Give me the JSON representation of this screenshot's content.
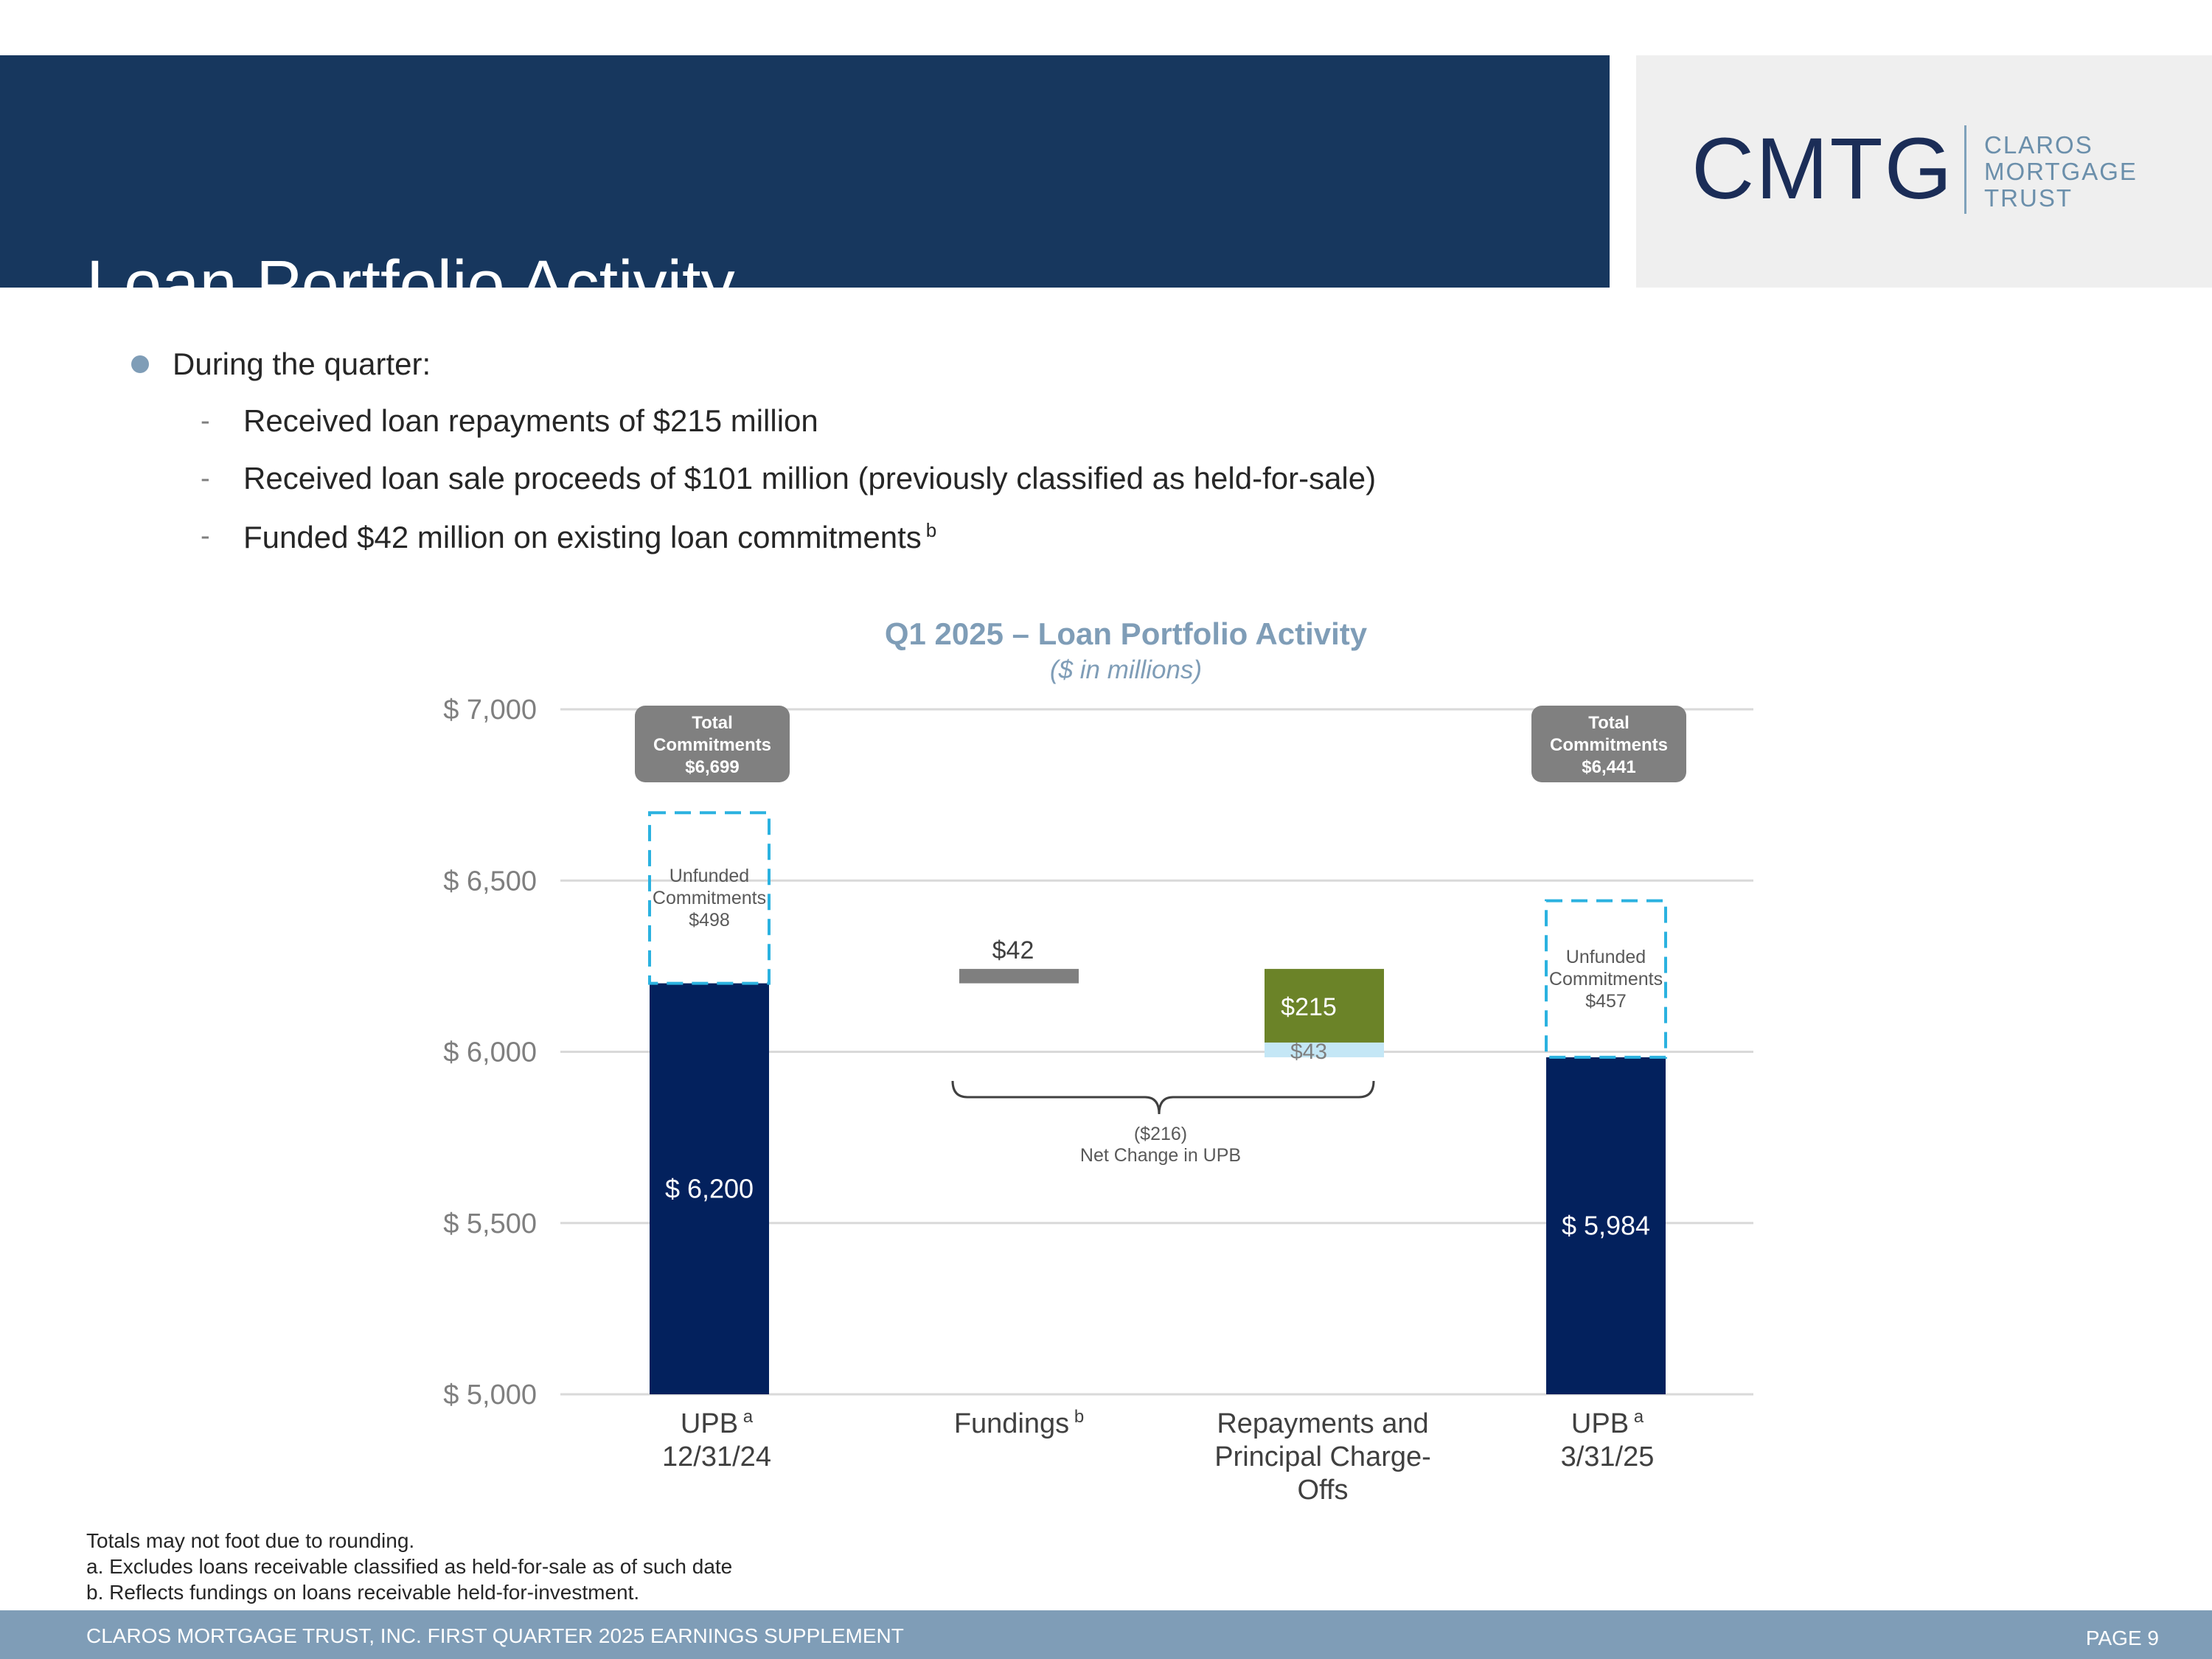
{
  "header": {
    "title": "Loan Portfolio Activity",
    "logo_mark": "CMTG",
    "logo_words": [
      "CLAROS",
      "MORTGAGE",
      "TRUST"
    ]
  },
  "bullets": {
    "lead": "During the quarter:",
    "items": [
      {
        "text": "Received loan repayments of $215 million",
        "note": ""
      },
      {
        "text": "Received loan sale proceeds of $101 million (previously classified as held-for-sale)",
        "note": ""
      },
      {
        "text": "Funded $42 million on existing loan commitments",
        "note": "b"
      }
    ]
  },
  "chart_data": {
    "type": "bar",
    "title": "Q1 2025 – Loan Portfolio Activity",
    "subtitle": "($ in millions)",
    "ylim": [
      5000,
      7000
    ],
    "yticks": [
      5000,
      5500,
      6000,
      6500,
      7000
    ],
    "ytick_labels": [
      "$ 5,000",
      "$ 5,500",
      "$ 6,000",
      "$ 6,500",
      "$ 7,000"
    ],
    "grid": true,
    "categories": [
      {
        "label": "UPB",
        "sup": "a",
        "label2": "12/31/24"
      },
      {
        "label": "Fundings",
        "sup": "b"
      },
      {
        "label": "Repayments and",
        "label2": "Principal Charge-",
        "label3": "Offs"
      },
      {
        "label": "UPB",
        "sup": "a",
        "label2": "3/31/25"
      }
    ],
    "upb": [
      {
        "category": "UPB 12/31/24",
        "value": 6200,
        "label": "$ 6,200"
      },
      {
        "category": "UPB 3/31/25",
        "value": 5984,
        "label": "$ 5,984"
      }
    ],
    "unfunded": [
      {
        "lines": [
          "Unfunded",
          "Commitments",
          "$498"
        ],
        "value": 498
      },
      {
        "lines": [
          "Unfunded",
          "Commitments",
          "$457"
        ],
        "value": 457
      }
    ],
    "total_commitments": [
      {
        "lines": [
          "Total",
          "Commitments",
          "$6,699"
        ],
        "value": 6699
      },
      {
        "lines": [
          "Total",
          "Commitments",
          "$6,441"
        ],
        "value": 6441
      }
    ],
    "fundings": {
      "value": 42,
      "label": "$42",
      "base": 6200
    },
    "repayments": {
      "value": 215,
      "label": "$215",
      "base": 6027
    },
    "charge_offs": {
      "value": 43,
      "label": "$43",
      "base": 5984
    },
    "net_change": {
      "lines": [
        "($216)",
        "Net Change in UPB"
      ],
      "value": -216
    },
    "colors": {
      "upb": "#03215d",
      "fundings": "#7f7f7f",
      "repayments": "#6b8328",
      "charge_offs": "#c4e7f6",
      "unfunded_border": "#2bb2e0",
      "total_box": "#808080",
      "title": "#7f9db7",
      "axis_text": "#7f7f7f",
      "grid": "#d9d9d9"
    }
  },
  "footnotes": [
    "Totals may not foot due to rounding.",
    "a. Excludes loans receivable classified as held-for-sale as of such date",
    "b. Reflects fundings on loans receivable held-for-investment."
  ],
  "footer": {
    "left": "CLAROS MORTGAGE TRUST, INC. FIRST QUARTER 2025 EARNINGS SUPPLEMENT",
    "right": "PAGE 9"
  }
}
